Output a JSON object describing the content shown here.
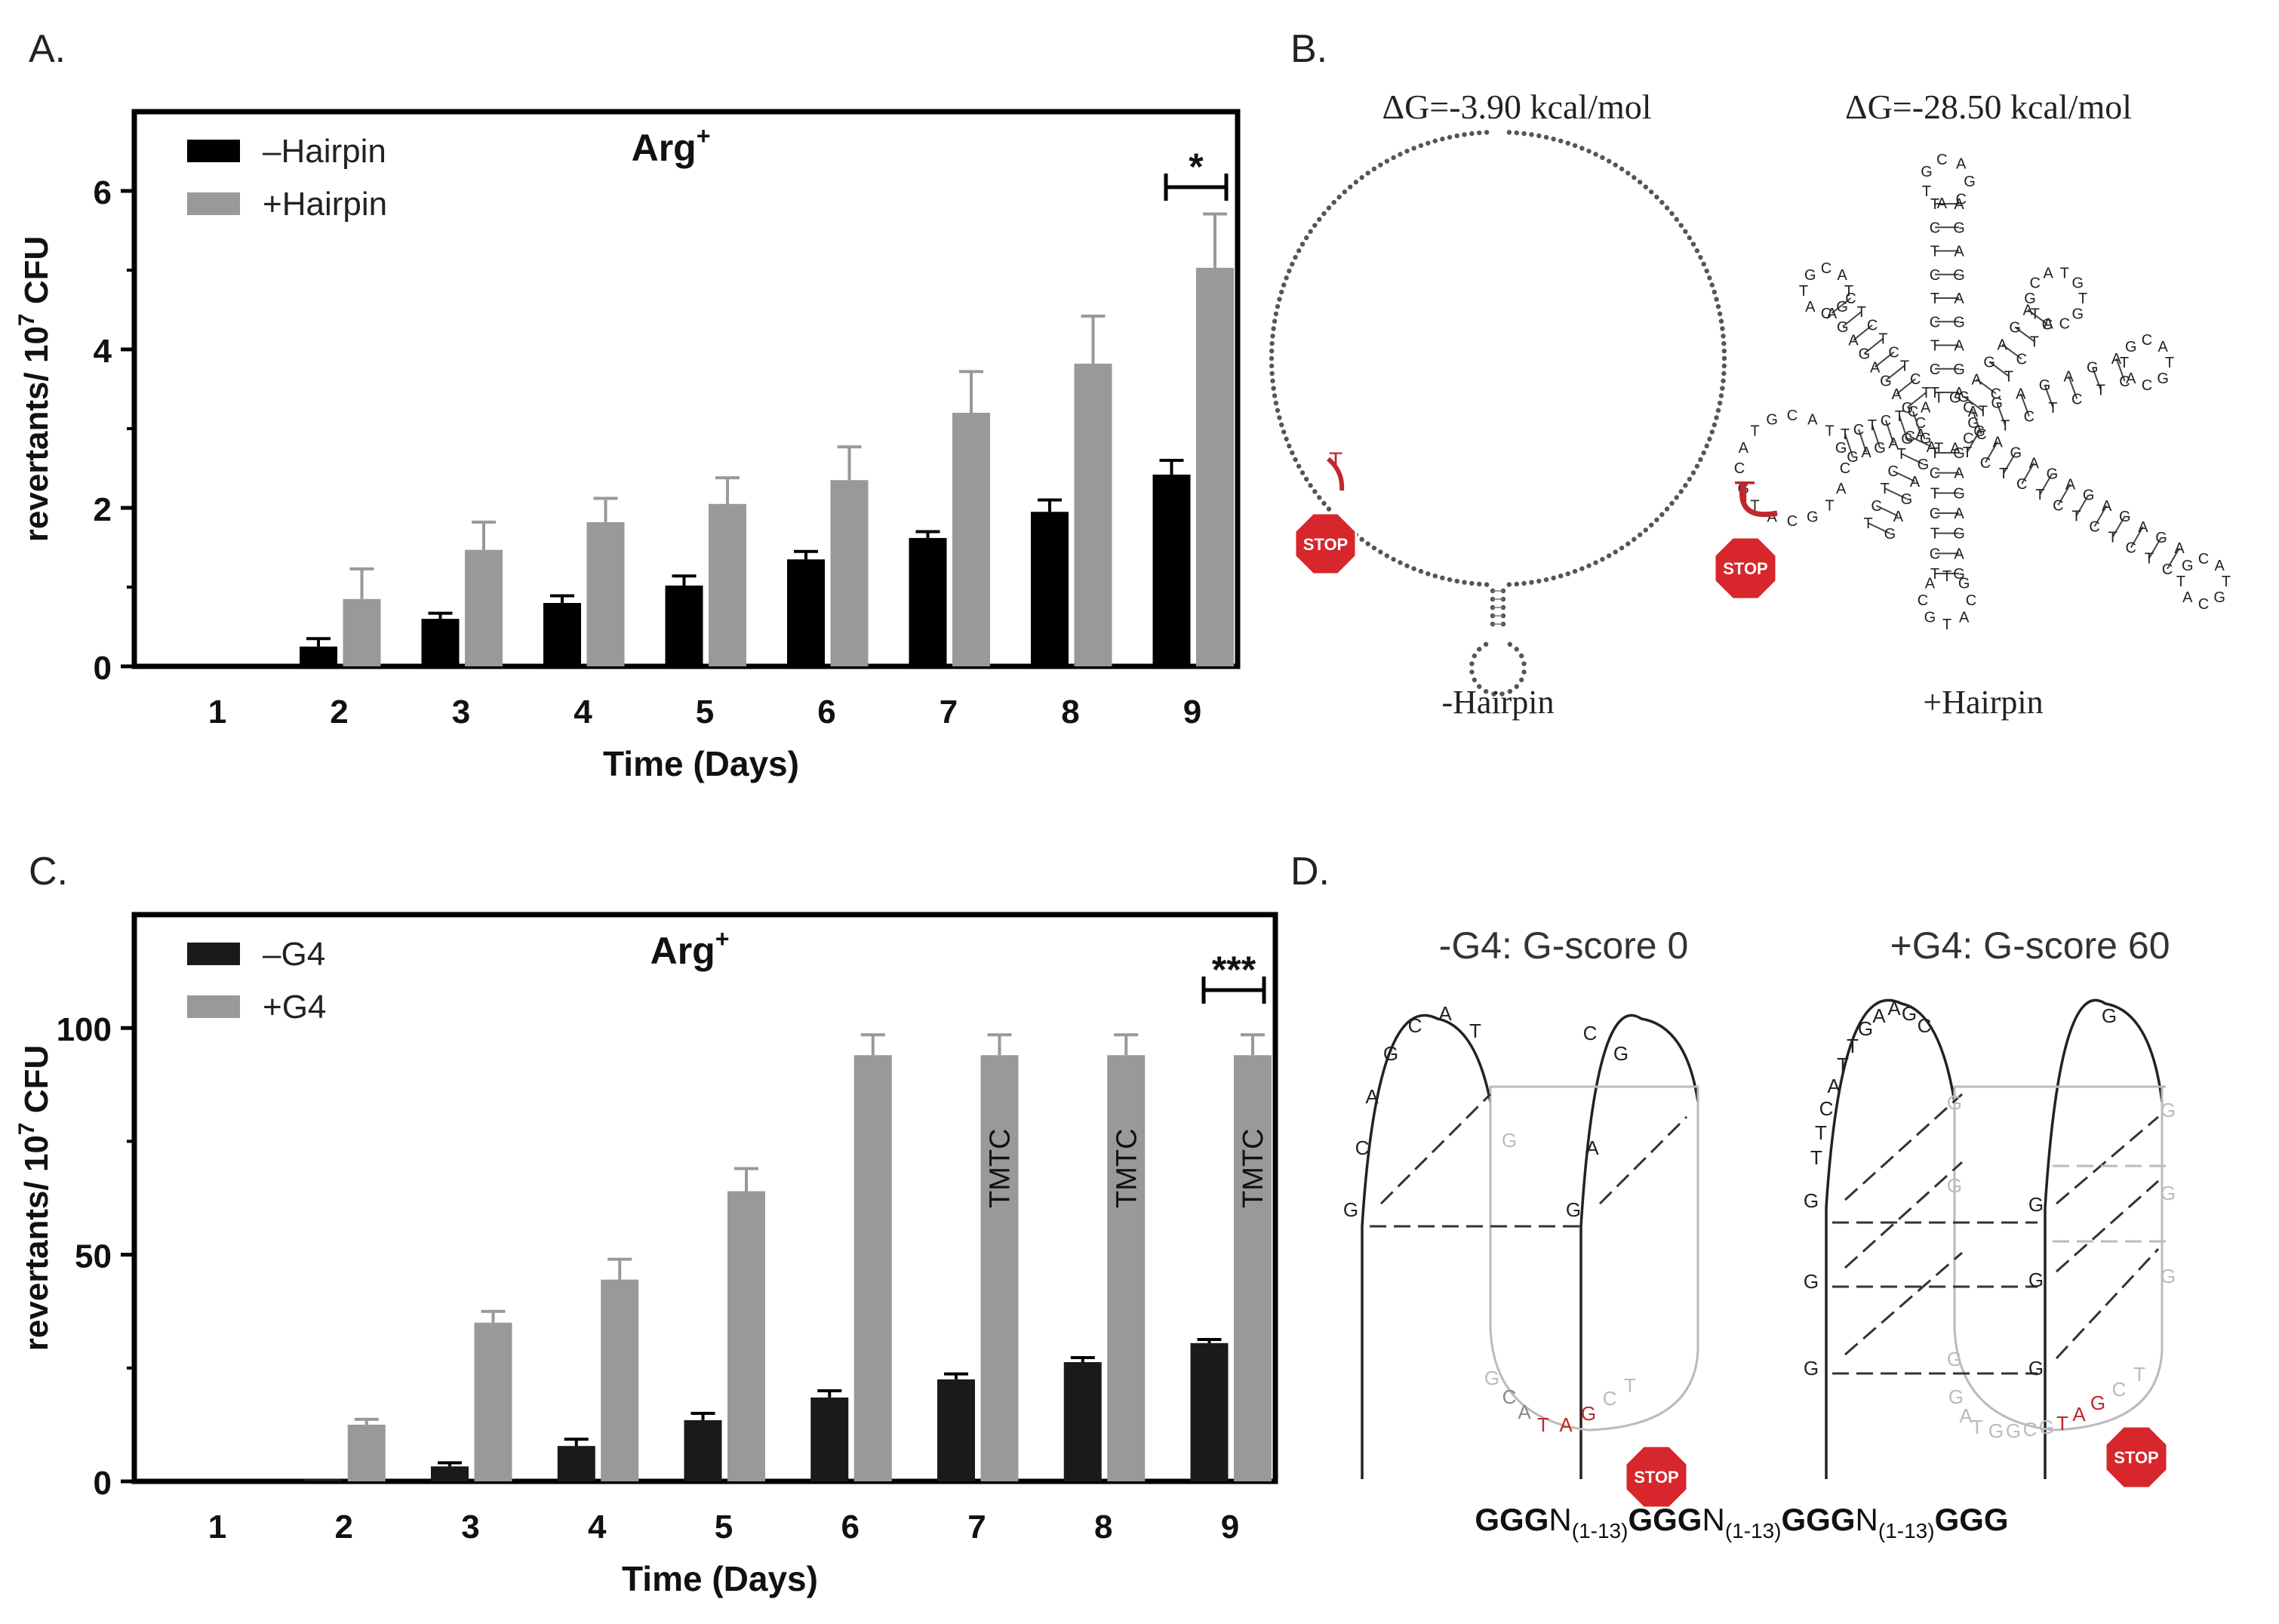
{
  "panels": {
    "A": {
      "letter": "A."
    },
    "B": {
      "letter": "B.",
      "left_dg": "ΔG=-3.90 kcal/mol",
      "right_dg": "ΔG=-28.50 kcal/mol",
      "left_label": "-Hairpin",
      "right_label": "+Hairpin",
      "stop": "STOP",
      "t": "T"
    },
    "C": {
      "letter": "C."
    },
    "D": {
      "letter": "D.",
      "left_title": "-G4: G-score 0",
      "right_title": "+G4: G-score 60",
      "stop": "STOP",
      "left_strand1": [
        "G",
        "C",
        "A",
        "G",
        "C",
        "A",
        "T"
      ],
      "left_strand2": [
        "G",
        "A",
        "C",
        "G"
      ],
      "left_loop": [
        "G",
        "C",
        "A",
        "T",
        "A",
        "G",
        "C",
        "T"
      ],
      "right_strand1": [
        "G",
        "T",
        "T",
        "C",
        "A",
        "T",
        "T",
        "G",
        "A",
        "A",
        "G",
        "C"
      ],
      "right_loop": [
        "G",
        "A",
        "T",
        "G",
        "G",
        "C",
        "G",
        "T",
        "A",
        "G",
        "C",
        "T"
      ],
      "formula": {
        "g": "GGG",
        "n": "N",
        "sub": "(1-13)"
      }
    }
  },
  "chart_data": [
    {
      "type": "bar",
      "panel": "A",
      "title": "Arg",
      "title_sup": "+",
      "categories": [
        "1",
        "2",
        "3",
        "4",
        "5",
        "6",
        "7",
        "8",
        "9"
      ],
      "series": [
        {
          "name": "-Hairpin",
          "color": "#000000",
          "values": [
            0,
            0.25,
            0.6,
            0.8,
            1.02,
            1.35,
            1.62,
            1.95,
            2.42
          ],
          "errors": [
            0,
            0.1,
            0.07,
            0.09,
            0.12,
            0.1,
            0.08,
            0.15,
            0.18
          ]
        },
        {
          "name": "+Hairpin",
          "color": "#999999",
          "values": [
            0,
            0.85,
            1.47,
            1.82,
            2.05,
            2.35,
            3.2,
            3.82,
            5.03
          ],
          "errors": [
            0,
            0.38,
            0.35,
            0.3,
            0.33,
            0.42,
            0.52,
            0.6,
            0.68
          ]
        }
      ],
      "xlabel": "Time (Days)",
      "ylabel": "revertants/ 10",
      "ylabel_sup": "7",
      "ylabel_end": " CFU",
      "yticks": [
        "0",
        "2",
        "4",
        "6"
      ],
      "ylim": [
        0,
        7
      ],
      "significance": {
        "day": "9",
        "label": "*"
      },
      "legend": "top-left"
    },
    {
      "type": "bar",
      "panel": "C",
      "title": "Arg",
      "title_sup": "+",
      "categories": [
        "1",
        "2",
        "3",
        "4",
        "5",
        "6",
        "7",
        "8",
        "9"
      ],
      "series": [
        {
          "name": "-G4",
          "color": "#1a1a1a",
          "values": [
            0,
            0.5,
            3.3,
            7.8,
            13.5,
            18.5,
            22.5,
            26.3,
            30.5
          ],
          "errors": [
            0,
            0,
            0.8,
            1.5,
            1.5,
            1.5,
            1.2,
            1,
            0.8
          ]
        },
        {
          "name": "+G4",
          "color": "#999999",
          "values": [
            0,
            12.5,
            35,
            44.5,
            64,
            94,
            94,
            94,
            94
          ],
          "errors": [
            0,
            1.2,
            2.5,
            4.5,
            5,
            4.5,
            4.5,
            4.5,
            4.5
          ],
          "annotations": [
            "",
            "",
            "",
            "",
            "",
            "",
            "TMTC",
            "TMTC",
            "TMTC"
          ]
        }
      ],
      "xlabel": "Time (Days)",
      "ylabel": "revertants/ 10",
      "ylabel_sup": "7",
      "ylabel_end": " CFU",
      "yticks": [
        "0",
        "50",
        "100"
      ],
      "ylim": [
        0,
        125
      ],
      "significance": {
        "day": "9",
        "label": "***"
      },
      "legend": "top-left"
    }
  ]
}
